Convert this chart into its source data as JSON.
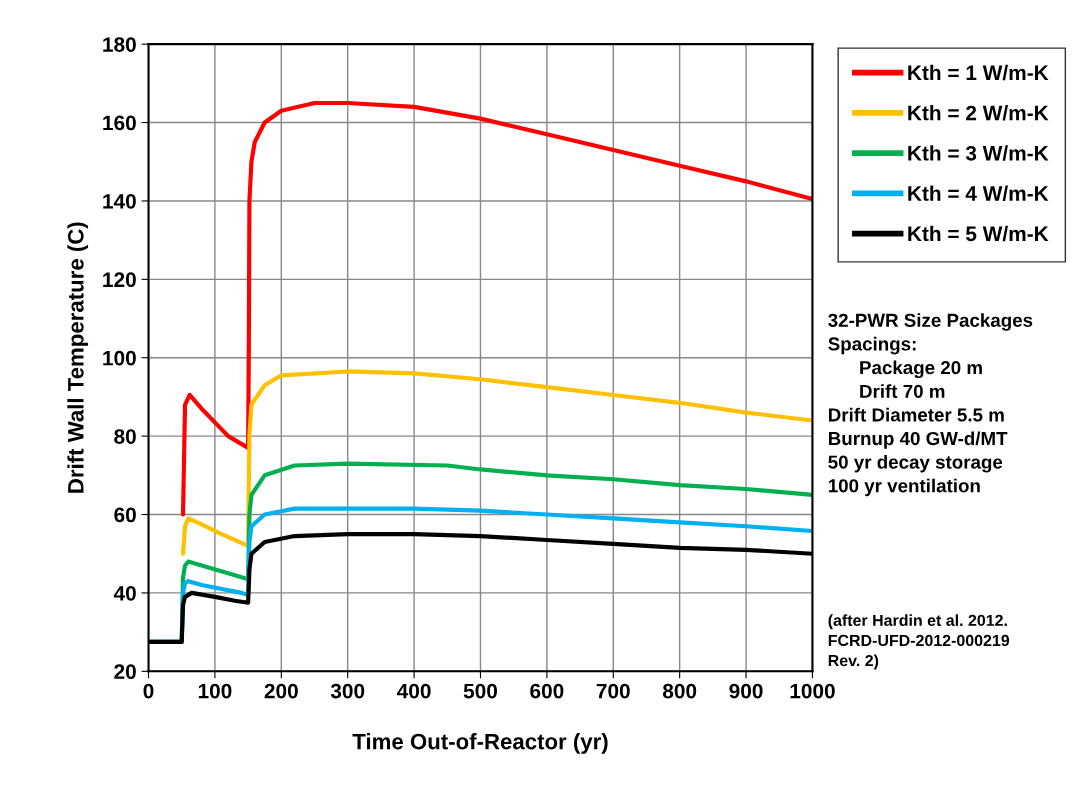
{
  "chart_data": {
    "type": "line",
    "xlabel": "Time Out-of-Reactor (yr)",
    "ylabel": "Drift Wall Temperature (C)",
    "xlim": [
      0,
      1000
    ],
    "xticks": [
      0,
      100,
      200,
      300,
      400,
      500,
      600,
      700,
      800,
      900,
      1000
    ],
    "ylim": [
      20,
      180
    ],
    "yticks": [
      20,
      40,
      60,
      80,
      100,
      120,
      140,
      160,
      180
    ],
    "grid": true,
    "legend": "right",
    "marker": "none",
    "line_style": "solid",
    "series": [
      {
        "name": "Kth = 1 W/m-K",
        "color": "#ff0000",
        "x": [
          52,
          55,
          62,
          80,
          100,
          120,
          150,
          151,
          152,
          155,
          160,
          175,
          200,
          250,
          300,
          400,
          500,
          600,
          700,
          800,
          900,
          1000
        ],
        "values": [
          60,
          88,
          90.5,
          87,
          83.5,
          80,
          77,
          100,
          140,
          150,
          155,
          160,
          163,
          165,
          165,
          164,
          161,
          157,
          153,
          149,
          145,
          140.5
        ]
      },
      {
        "name": "Kth = 2 W/m-K",
        "color": "#ffc000",
        "x": [
          52,
          55,
          60,
          80,
          110,
          150,
          152,
          155,
          175,
          200,
          300,
          400,
          500,
          600,
          700,
          800,
          900,
          1000
        ],
        "values": [
          50,
          57,
          59,
          57.5,
          55,
          52,
          80,
          88,
          93,
          95.5,
          96.5,
          96,
          94.5,
          92.5,
          90.5,
          88.5,
          86,
          84
        ]
      },
      {
        "name": "Kth = 3 W/m-K",
        "color": "#00b050",
        "x": [
          0,
          50,
          52,
          55,
          60,
          80,
          120,
          150,
          152,
          155,
          175,
          220,
          300,
          450,
          500,
          600,
          700,
          800,
          900,
          1000
        ],
        "values": [
          27.5,
          27.5,
          44,
          47,
          48,
          47,
          45,
          43.5,
          60,
          65,
          70,
          72.5,
          73,
          72.5,
          71.5,
          70,
          69,
          67.5,
          66.5,
          65
        ]
      },
      {
        "name": "Kth = 4 W/m-K",
        "color": "#00b0f0",
        "x": [
          0,
          50,
          52,
          55,
          60,
          80,
          140,
          150,
          152,
          155,
          175,
          220,
          400,
          500,
          600,
          700,
          800,
          900,
          1000
        ],
        "values": [
          27.5,
          27.5,
          40,
          42.5,
          43,
          42,
          40,
          39.5,
          53,
          57,
          60,
          61.5,
          61.5,
          61,
          60,
          59,
          58,
          57,
          55.8
        ]
      },
      {
        "name": "Kth = 5 W/m-K",
        "color": "#000000",
        "x": [
          0,
          50,
          52,
          55,
          65,
          100,
          130,
          150,
          152,
          155,
          175,
          220,
          300,
          400,
          500,
          600,
          700,
          800,
          900,
          1000
        ],
        "values": [
          27.5,
          27.5,
          37,
          39,
          40,
          39,
          38,
          37.5,
          46,
          50,
          53,
          54.5,
          55,
          55,
          54.5,
          53.5,
          52.5,
          51.5,
          51,
          50
        ]
      }
    ],
    "annotations": [
      "32-PWR Size Packages\nSpacings:\n      Package 20 m\n      Drift 70 m\nDrift Diameter 5.5 m\nBurnup 40 GW-d/MT\n50 yr decay storage\n100 yr ventilation",
      "(after Hardin et al. 2012.\nFCRD-UFD-2012-000219\nRev. 2)"
    ]
  }
}
